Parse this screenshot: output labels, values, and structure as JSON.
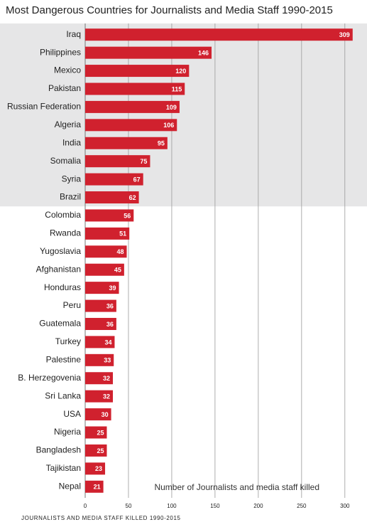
{
  "chart_data": {
    "type": "bar",
    "orientation": "horizontal",
    "title": "Most Dangerous Countries for Journalists and Media Staff 1990-2015",
    "x_label": "Number of Journalists and media staff killed",
    "footer": "JOURNALISTS AND MEDIA STAFF KILLED 1990-2015",
    "categories": [
      "Iraq",
      "Philippines",
      "Mexico",
      "Pakistan",
      "Russian Federation",
      "Algeria",
      "India",
      "Somalia",
      "Syria",
      "Brazil",
      "Colombia",
      "Rwanda",
      "Yugoslavia",
      "Afghanistan",
      "Honduras",
      "Peru",
      "Guatemala",
      "Turkey",
      "Palestine",
      "B. Herzegovenia",
      "Sri Lanka",
      "USA",
      "Nigeria",
      "Bangladesh",
      "Tajikistan",
      "Nepal"
    ],
    "values": [
      309,
      146,
      120,
      115,
      109,
      106,
      95,
      75,
      67,
      62,
      56,
      51,
      48,
      45,
      39,
      36,
      36,
      34,
      33,
      32,
      32,
      30,
      25,
      25,
      23,
      21
    ],
    "color": "#d0212e",
    "xlim": [
      0,
      310
    ],
    "xticks": [
      0,
      50,
      100,
      150,
      200,
      250,
      300
    ],
    "grid": true
  }
}
